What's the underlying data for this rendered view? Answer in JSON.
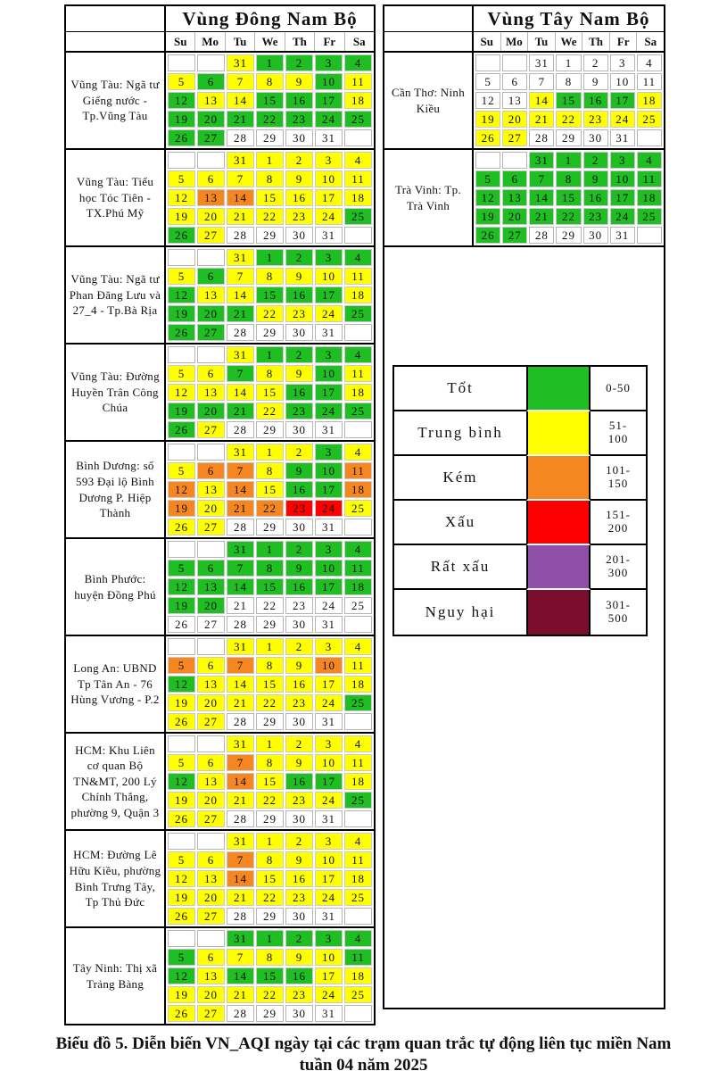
{
  "chart_data": {
    "type": "heatmap",
    "title": "Biểu đồ 5. Diễn biến VN_AQI ngày tại các trạm quan trắc tự động liên tục miền Nam tuần 04 năm 2025",
    "caption_line1": "Biểu đồ 5. Diễn biến VN_AQI ngày tại các trạm quan trắc tự động liên tục miền Nam",
    "caption_line2": "tuần 04 năm 2025",
    "days": [
      "Su",
      "Mo",
      "Tu",
      "We",
      "Th",
      "Fr",
      "Sa"
    ],
    "color_map": {
      "G": "#1fbe23",
      "Y": "#ffff00",
      "O": "#f6861f",
      "R": "#ff0000",
      "P": "#8f4fa8",
      "H": "#7b0d2e",
      "N": "#ffffff"
    },
    "legend": [
      {
        "label": "Tốt",
        "range": "0-50",
        "key": "G",
        "color": "#1fbe23"
      },
      {
        "label": "Trung bình",
        "range": "51-\n100",
        "key": "Y",
        "color": "#ffff00"
      },
      {
        "label": "Kém",
        "range": "101-\n150",
        "key": "O",
        "color": "#f6861f"
      },
      {
        "label": "Xấu",
        "range": "151-\n200",
        "key": "R",
        "color": "#ff0000"
      },
      {
        "label": "Rất xấu",
        "range": "201-\n300",
        "key": "P",
        "color": "#8f4fa8"
      },
      {
        "label": "Nguy hại",
        "range": "301-\n500",
        "key": "H",
        "color": "#7b0d2e"
      }
    ],
    "regions": [
      {
        "title": "Vùng Đông Nam Bộ",
        "stations": [
          {
            "label": "Vũng Tàu: Ngã tư Giếng nước - Tp.Vũng Tàu",
            "weeks": [
              [
                "",
                "",
                "31Y",
                "1G",
                "2G",
                "3G",
                "4G"
              ],
              [
                "5Y",
                "6G",
                "7Y",
                "8Y",
                "9Y",
                "10G",
                "11Y"
              ],
              [
                "12G",
                "13Y",
                "14Y",
                "15G",
                "16G",
                "17G",
                "18Y"
              ],
              [
                "19G",
                "20G",
                "21G",
                "22G",
                "23G",
                "24G",
                "25G"
              ],
              [
                "26G",
                "27G",
                "28N",
                "29N",
                "30N",
                "31N",
                ""
              ]
            ]
          },
          {
            "label": "Vũng Tàu: Tiểu học Tóc Tiên - TX.Phú Mỹ",
            "weeks": [
              [
                "",
                "",
                "31Y",
                "1Y",
                "2Y",
                "3Y",
                "4Y"
              ],
              [
                "5Y",
                "6Y",
                "7Y",
                "8Y",
                "9Y",
                "10Y",
                "11Y"
              ],
              [
                "12Y",
                "13O",
                "14O",
                "15Y",
                "16Y",
                "17Y",
                "18Y"
              ],
              [
                "19Y",
                "20Y",
                "21Y",
                "22Y",
                "23Y",
                "24Y",
                "25G"
              ],
              [
                "26G",
                "27Y",
                "28N",
                "29N",
                "30N",
                "31N",
                ""
              ]
            ]
          },
          {
            "label": "Vũng Tàu: Ngã tư Phan Đăng Lưu và 27_4 - Tp.Bà Rịa",
            "weeks": [
              [
                "",
                "",
                "31Y",
                "1G",
                "2G",
                "3G",
                "4G"
              ],
              [
                "5Y",
                "6G",
                "7Y",
                "8Y",
                "9Y",
                "10Y",
                "11Y"
              ],
              [
                "12G",
                "13Y",
                "14Y",
                "15G",
                "16G",
                "17G",
                "18Y"
              ],
              [
                "19G",
                "20G",
                "21G",
                "22Y",
                "23Y",
                "24Y",
                "25G"
              ],
              [
                "26G",
                "27G",
                "28N",
                "29N",
                "30N",
                "31N",
                ""
              ]
            ]
          },
          {
            "label": "Vũng Tàu: Đường Huyền Trân Công Chúa",
            "weeks": [
              [
                "",
                "",
                "31Y",
                "1G",
                "2G",
                "3G",
                "4G"
              ],
              [
                "5Y",
                "6Y",
                "7G",
                "8Y",
                "9Y",
                "10G",
                "11Y"
              ],
              [
                "12Y",
                "13Y",
                "14Y",
                "15Y",
                "16G",
                "17G",
                "18Y"
              ],
              [
                "19G",
                "20G",
                "21G",
                "22Y",
                "23G",
                "24G",
                "25G"
              ],
              [
                "26G",
                "27Y",
                "28N",
                "29N",
                "30N",
                "31N",
                ""
              ]
            ]
          },
          {
            "label": "Bình Dương: số 593 Đại lộ Bình Dương P. Hiệp Thành",
            "weeks": [
              [
                "",
                "",
                "31Y",
                "1Y",
                "2Y",
                "3G",
                "4Y"
              ],
              [
                "5Y",
                "6O",
                "7O",
                "8Y",
                "9G",
                "10G",
                "11O"
              ],
              [
                "12O",
                "13Y",
                "14O",
                "15Y",
                "16G",
                "17G",
                "18O"
              ],
              [
                "19O",
                "20Y",
                "21O",
                "22O",
                "23R",
                "24R",
                "25Y"
              ],
              [
                "26Y",
                "27Y",
                "28N",
                "29N",
                "30N",
                "31N",
                ""
              ]
            ]
          },
          {
            "label": "Bình Phước: huyện Đồng Phú",
            "weeks": [
              [
                "",
                "",
                "31G",
                "1G",
                "2G",
                "3G",
                "4G"
              ],
              [
                "5G",
                "6G",
                "7G",
                "8G",
                "9G",
                "10G",
                "11G"
              ],
              [
                "12G",
                "13G",
                "14G",
                "15G",
                "16G",
                "17G",
                "18G"
              ],
              [
                "19G",
                "20G",
                "21N",
                "22N",
                "23N",
                "24N",
                "25N"
              ],
              [
                "26N",
                "27N",
                "28N",
                "29N",
                "30N",
                "31N",
                ""
              ]
            ]
          },
          {
            "label": "Long An: UBND Tp Tân An - 76 Hùng Vương - P.2",
            "weeks": [
              [
                "",
                "",
                "31Y",
                "1Y",
                "2Y",
                "3Y",
                "4Y"
              ],
              [
                "5O",
                "6Y",
                "7O",
                "8Y",
                "9Y",
                "10O",
                "11Y"
              ],
              [
                "12G",
                "13Y",
                "14Y",
                "15Y",
                "16Y",
                "17Y",
                "18Y"
              ],
              [
                "19Y",
                "20Y",
                "21Y",
                "22Y",
                "23Y",
                "24Y",
                "25G"
              ],
              [
                "26Y",
                "27Y",
                "28N",
                "29N",
                "30N",
                "31N",
                ""
              ]
            ]
          },
          {
            "label": "HCM: Khu Liên cơ quan Bộ TN&MT, 200 Lý Chính Thắng, phường 9, Quận 3",
            "weeks": [
              [
                "",
                "",
                "31Y",
                "1Y",
                "2Y",
                "3Y",
                "4Y"
              ],
              [
                "5Y",
                "6Y",
                "7O",
                "8Y",
                "9Y",
                "10Y",
                "11Y"
              ],
              [
                "12G",
                "13Y",
                "14O",
                "15Y",
                "16G",
                "17G",
                "18Y"
              ],
              [
                "19Y",
                "20Y",
                "21Y",
                "22Y",
                "23Y",
                "24Y",
                "25G"
              ],
              [
                "26Y",
                "27Y",
                "28N",
                "29N",
                "30N",
                "31N",
                ""
              ]
            ]
          },
          {
            "label": "HCM: Đường Lê Hữu Kiều, phường Bình Trưng Tây, Tp Thủ Đức",
            "weeks": [
              [
                "",
                "",
                "31Y",
                "1Y",
                "2Y",
                "3Y",
                "4Y"
              ],
              [
                "5Y",
                "6Y",
                "7O",
                "8Y",
                "9Y",
                "10Y",
                "11Y"
              ],
              [
                "12Y",
                "13Y",
                "14O",
                "15Y",
                "16Y",
                "17Y",
                "18Y"
              ],
              [
                "19Y",
                "20Y",
                "21Y",
                "22Y",
                "23Y",
                "24Y",
                "25Y"
              ],
              [
                "26Y",
                "27Y",
                "28N",
                "29N",
                "30N",
                "31N",
                ""
              ]
            ]
          },
          {
            "label": "Tây Ninh: Thị xã Trảng Bàng",
            "weeks": [
              [
                "",
                "",
                "31G",
                "1G",
                "2G",
                "3G",
                "4G"
              ],
              [
                "5G",
                "6Y",
                "7Y",
                "8Y",
                "9Y",
                "10Y",
                "11G"
              ],
              [
                "12G",
                "13Y",
                "14G",
                "15G",
                "16G",
                "17Y",
                "18Y"
              ],
              [
                "19Y",
                "20Y",
                "21Y",
                "22Y",
                "23Y",
                "24Y",
                "25Y"
              ],
              [
                "26Y",
                "27Y",
                "28N",
                "29N",
                "30N",
                "31N",
                ""
              ]
            ]
          }
        ]
      },
      {
        "title": "Vùng Tây Nam Bộ",
        "stations": [
          {
            "label": "Cần Thơ: Ninh Kiều",
            "weeks": [
              [
                "",
                "",
                "31N",
                "1N",
                "2N",
                "3N",
                "4N"
              ],
              [
                "5N",
                "6N",
                "7N",
                "8N",
                "9N",
                "10N",
                "11N"
              ],
              [
                "12N",
                "13N",
                "14Y",
                "15G",
                "16G",
                "17G",
                "18Y"
              ],
              [
                "19Y",
                "20Y",
                "21Y",
                "22Y",
                "23Y",
                "24Y",
                "25Y"
              ],
              [
                "26Y",
                "27Y",
                "28N",
                "29N",
                "30N",
                "31N",
                ""
              ]
            ]
          },
          {
            "label": "Trà Vinh: Tp. Trà Vinh",
            "weeks": [
              [
                "",
                "",
                "31G",
                "1G",
                "2G",
                "3G",
                "4G"
              ],
              [
                "5G",
                "6G",
                "7G",
                "8G",
                "9G",
                "10G",
                "11G"
              ],
              [
                "12G",
                "13G",
                "14G",
                "15G",
                "16G",
                "17G",
                "18G"
              ],
              [
                "19G",
                "20G",
                "21G",
                "22G",
                "23G",
                "24G",
                "25G"
              ],
              [
                "26G",
                "27G",
                "28N",
                "29N",
                "30N",
                "31N",
                ""
              ]
            ]
          }
        ]
      }
    ]
  }
}
